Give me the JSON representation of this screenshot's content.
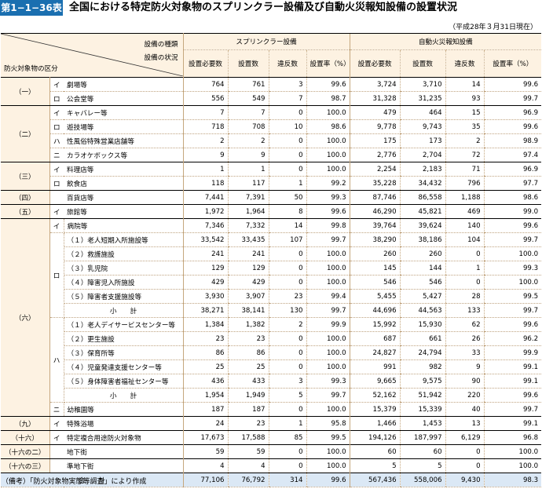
{
  "title": {
    "badge": "第1−1−36表",
    "text": "全国における特定防火対象物のスプリンクラー設備及び自動火災報知設備の設置状況"
  },
  "as_of": "（平成28年３月31日現在）",
  "header": {
    "corner_kind": "設備の種類",
    "corner_status": "設備の状況",
    "corner_category": "防火対象物の区分",
    "group1": "スプリンクラー設備",
    "group2": "自動火災報知設備",
    "cols": [
      "設置必要数",
      "設置数",
      "違反数",
      "設置率（%）",
      "設置必要数",
      "設置数",
      "違反数",
      "設置率（%）"
    ]
  },
  "rows": [
    {
      "g": "（一）",
      "s": "イ",
      "n": "劇場等",
      "v": [
        "764",
        "761",
        "3",
        "99.6",
        "3,724",
        "3,710",
        "14",
        "99.6"
      ]
    },
    {
      "g": "",
      "s": "ロ",
      "n": "公会堂等",
      "v": [
        "556",
        "549",
        "7",
        "98.7",
        "31,328",
        "31,235",
        "93",
        "99.7"
      ]
    },
    {
      "g": "（二）",
      "s": "イ",
      "n": "キャバレー等",
      "v": [
        "7",
        "7",
        "0",
        "100.0",
        "479",
        "464",
        "15",
        "96.9"
      ]
    },
    {
      "g": "",
      "s": "ロ",
      "n": "遊技場等",
      "v": [
        "718",
        "708",
        "10",
        "98.6",
        "9,778",
        "9,743",
        "35",
        "99.6"
      ]
    },
    {
      "g": "",
      "s": "ハ",
      "n": "性風俗特殊営業店舗等",
      "v": [
        "2",
        "2",
        "0",
        "100.0",
        "175",
        "173",
        "2",
        "98.9"
      ]
    },
    {
      "g": "",
      "s": "ニ",
      "n": "カラオケボックス等",
      "v": [
        "9",
        "9",
        "0",
        "100.0",
        "2,776",
        "2,704",
        "72",
        "97.4"
      ]
    },
    {
      "g": "（三）",
      "s": "イ",
      "n": "料理店等",
      "v": [
        "1",
        "1",
        "0",
        "100.0",
        "2,254",
        "2,183",
        "71",
        "96.9"
      ]
    },
    {
      "g": "",
      "s": "ロ",
      "n": "飲食店",
      "v": [
        "118",
        "117",
        "1",
        "99.2",
        "35,228",
        "34,432",
        "796",
        "97.7"
      ]
    },
    {
      "g": "（四）",
      "s": "",
      "n": "百貨店等",
      "v": [
        "7,441",
        "7,391",
        "50",
        "99.3",
        "87,746",
        "86,558",
        "1,188",
        "98.6"
      ]
    },
    {
      "g": "（五）",
      "s": "イ",
      "n": "旅館等",
      "v": [
        "1,972",
        "1,964",
        "8",
        "99.6",
        "46,290",
        "45,821",
        "469",
        "99.0"
      ]
    },
    {
      "g": "",
      "s": "イ",
      "n": "病院等",
      "v": [
        "7,346",
        "7,332",
        "14",
        "99.8",
        "39,764",
        "39,624",
        "140",
        "99.6"
      ]
    },
    {
      "g": "",
      "s": "",
      "n": "（１）老人短期入所施設等",
      "v": [
        "33,542",
        "33,435",
        "107",
        "99.7",
        "38,290",
        "38,186",
        "104",
        "99.7"
      ]
    },
    {
      "g": "",
      "s": "",
      "n": "（２）救護施設",
      "v": [
        "241",
        "241",
        "0",
        "100.0",
        "260",
        "260",
        "0",
        "100.0"
      ]
    },
    {
      "g": "",
      "s": "ロ",
      "n": "（３）乳児院",
      "v": [
        "129",
        "129",
        "0",
        "100.0",
        "145",
        "144",
        "1",
        "99.3"
      ]
    },
    {
      "g": "",
      "s": "",
      "n": "（４）障害児入所施設",
      "v": [
        "429",
        "429",
        "0",
        "100.0",
        "546",
        "546",
        "0",
        "100.0"
      ]
    },
    {
      "g": "",
      "s": "",
      "n": "（５）障害者支援施設等",
      "v": [
        "3,930",
        "3,907",
        "23",
        "99.4",
        "5,455",
        "5,427",
        "28",
        "99.5"
      ]
    },
    {
      "g": "（六）",
      "s": "",
      "n": "小　　計",
      "v": [
        "38,271",
        "38,141",
        "130",
        "99.7",
        "44,696",
        "44,563",
        "133",
        "99.7"
      ]
    },
    {
      "g": "",
      "s": "",
      "n": "（１）老人デイサービスセンター等",
      "v": [
        "1,384",
        "1,382",
        "2",
        "99.9",
        "15,992",
        "15,930",
        "62",
        "99.6"
      ]
    },
    {
      "g": "",
      "s": "",
      "n": "（２）更生施設",
      "v": [
        "23",
        "23",
        "0",
        "100.0",
        "687",
        "661",
        "26",
        "96.2"
      ]
    },
    {
      "g": "",
      "s": "ハ",
      "n": "（３）保育所等",
      "v": [
        "86",
        "86",
        "0",
        "100.0",
        "24,827",
        "24,794",
        "33",
        "99.9"
      ]
    },
    {
      "g": "",
      "s": "",
      "n": "（４）児童発達支援センター等",
      "v": [
        "25",
        "25",
        "0",
        "100.0",
        "991",
        "982",
        "9",
        "99.1"
      ]
    },
    {
      "g": "",
      "s": "",
      "n": "（５）身体障害者福祉センター等",
      "v": [
        "436",
        "433",
        "3",
        "99.3",
        "9,665",
        "9,575",
        "90",
        "99.1"
      ]
    },
    {
      "g": "",
      "s": "",
      "n": "小　　計",
      "v": [
        "1,954",
        "1,949",
        "5",
        "99.7",
        "52,162",
        "51,942",
        "220",
        "99.6"
      ]
    },
    {
      "g": "",
      "s": "ニ",
      "n": "幼稚園等",
      "v": [
        "187",
        "187",
        "0",
        "100.0",
        "15,379",
        "15,339",
        "40",
        "99.7"
      ]
    },
    {
      "g": "（九）",
      "s": "イ",
      "n": "特殊浴場",
      "v": [
        "24",
        "23",
        "1",
        "95.8",
        "1,466",
        "1,453",
        "13",
        "99.1"
      ]
    },
    {
      "g": "（十六）",
      "s": "イ",
      "n": "特定複合用途防火対象物",
      "v": [
        "17,673",
        "17,588",
        "85",
        "99.5",
        "194,126",
        "187,997",
        "6,129",
        "96.8"
      ]
    },
    {
      "g": "（十六の二）",
      "s": "",
      "n": "地下街",
      "v": [
        "59",
        "59",
        "0",
        "100.0",
        "60",
        "60",
        "0",
        "100.0"
      ]
    },
    {
      "g": "（十六の三）",
      "s": "",
      "n": "準地下街",
      "v": [
        "4",
        "4",
        "0",
        "100.0",
        "5",
        "5",
        "0",
        "100.0"
      ]
    }
  ],
  "total": {
    "label": "合　　計",
    "v": [
      "77,106",
      "76,792",
      "314",
      "99.6",
      "567,436",
      "558,006",
      "9,430",
      "98.3"
    ]
  },
  "note": "（備考）「防火対象物実態等調査」により作成"
}
